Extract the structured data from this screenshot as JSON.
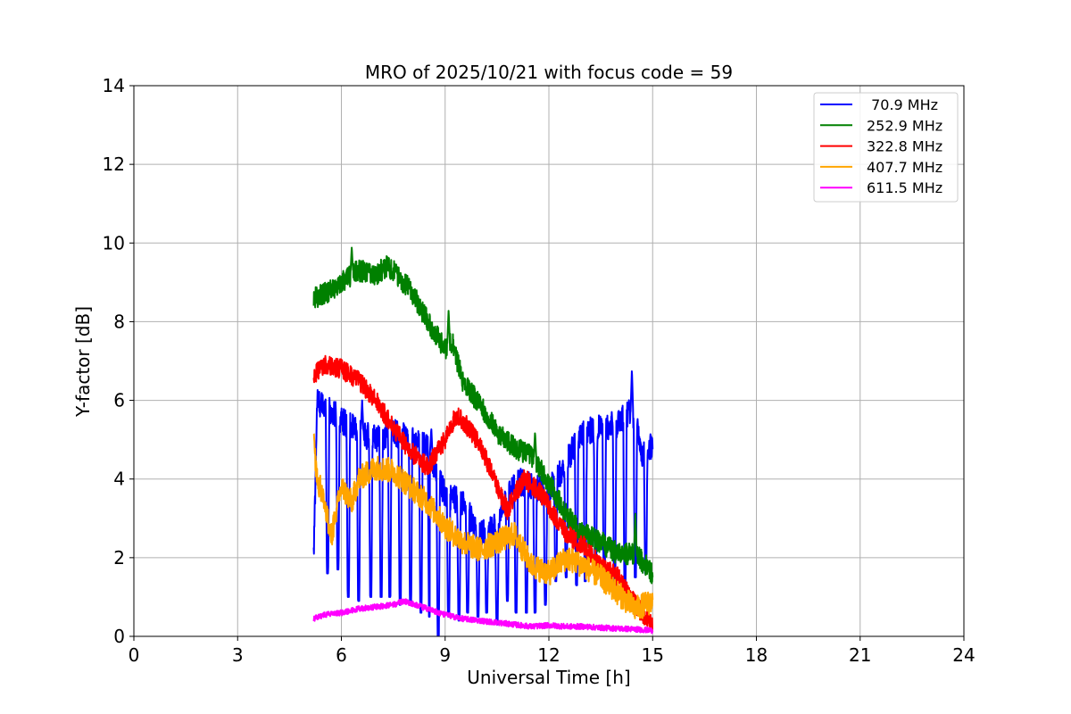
{
  "chart_data": {
    "type": "line",
    "title": "MRO of 2025/10/21 with focus code = 59",
    "xlabel": "Universal Time [h]",
    "ylabel": "Y-factor [dB]",
    "xlim": [
      0,
      24
    ],
    "ylim": [
      0,
      14
    ],
    "xticks": [
      0,
      3,
      6,
      9,
      12,
      15,
      18,
      21,
      24
    ],
    "yticks": [
      0,
      2,
      4,
      6,
      8,
      10,
      12,
      14
    ],
    "grid": true,
    "legend_position": "top-right",
    "series": [
      {
        "name": " 70.9 MHz",
        "color": "#0000ff",
        "noise": 0.35,
        "spike_width": 0.05,
        "dips": [
          5.6,
          5.9,
          6.2,
          6.5,
          6.85,
          7.15,
          7.4,
          7.7,
          8.0,
          8.3,
          8.55,
          8.8,
          9.1,
          9.4,
          9.65,
          9.95,
          10.2,
          10.5,
          10.8,
          11.05,
          11.35,
          11.6,
          11.9,
          12.2,
          12.5,
          12.8,
          13.05,
          13.35,
          13.6,
          13.9,
          14.2,
          14.5,
          14.8
        ],
        "dip_floor": [
          1.6,
          1.7,
          1.0,
          0.9,
          1.0,
          1.0,
          1.0,
          0.8,
          0.8,
          0.6,
          0.5,
          0.0,
          0.5,
          0.4,
          0.6,
          0.5,
          0.6,
          0.3,
          0.9,
          0.6,
          0.6,
          0.6,
          0.8,
          1.4,
          1.5,
          1.3,
          1.4,
          1.4,
          1.4,
          1.0,
          1.3,
          1.5,
          1.6
        ],
        "x": [
          5.2,
          5.3,
          5.5,
          5.7,
          6.0,
          6.5,
          7.0,
          7.5,
          8.0,
          8.5,
          9.0,
          9.5,
          10.0,
          10.5,
          11.0,
          11.5,
          12.0,
          12.5,
          12.8,
          13.0,
          13.5,
          14.0,
          14.3,
          14.5,
          14.7,
          15.0
        ],
        "y": [
          2.0,
          6.0,
          5.8,
          5.7,
          5.5,
          5.2,
          5.0,
          5.2,
          5.0,
          4.8,
          3.6,
          3.4,
          2.6,
          2.8,
          4.0,
          3.8,
          3.7,
          4.4,
          5.0,
          5.2,
          5.3,
          5.4,
          5.7,
          5.5,
          4.6,
          4.9
        ],
        "spikes": [
          {
            "x": 14.4,
            "y": 6.8
          },
          {
            "x": 6.6,
            "y": 6.0
          },
          {
            "x": 8.6,
            "y": 5.3
          }
        ]
      },
      {
        "name": "252.9 MHz",
        "color": "#008000",
        "noise": 0.28,
        "x": [
          5.2,
          5.5,
          6.0,
          6.3,
          6.5,
          7.0,
          7.3,
          7.5,
          8.0,
          8.5,
          9.0,
          9.2,
          9.5,
          10.0,
          10.5,
          11.0,
          11.5,
          12.0,
          12.5,
          13.0,
          13.5,
          14.0,
          14.5,
          15.0
        ],
        "y": [
          8.6,
          8.7,
          9.0,
          9.2,
          9.3,
          9.2,
          9.4,
          9.3,
          8.8,
          8.0,
          7.3,
          7.5,
          6.5,
          5.9,
          5.2,
          4.8,
          4.6,
          3.9,
          3.1,
          2.6,
          2.4,
          2.1,
          2.1,
          1.6
        ],
        "spikes": [
          {
            "x": 6.3,
            "y": 9.9
          },
          {
            "x": 9.1,
            "y": 8.3
          },
          {
            "x": 14.5,
            "y": 3.2
          },
          {
            "x": 11.6,
            "y": 5.2
          }
        ]
      },
      {
        "name": "322.8 MHz",
        "color": "#ff0000",
        "noise": 0.25,
        "x": [
          5.2,
          5.5,
          6.0,
          6.5,
          7.0,
          7.5,
          8.0,
          8.5,
          9.0,
          9.3,
          9.5,
          10.0,
          10.5,
          10.8,
          11.0,
          11.3,
          11.7,
          12.0,
          12.5,
          13.0,
          13.5,
          14.0,
          14.5,
          15.0
        ],
        "y": [
          6.6,
          6.9,
          6.8,
          6.5,
          6.0,
          5.3,
          4.7,
          4.3,
          5.0,
          5.6,
          5.5,
          4.9,
          3.8,
          3.2,
          3.6,
          4.0,
          3.7,
          3.3,
          2.6,
          2.3,
          1.8,
          1.5,
          0.8,
          0.3
        ]
      },
      {
        "name": "407.7 MHz",
        "color": "#ffa500",
        "noise": 0.32,
        "x": [
          5.2,
          5.3,
          5.5,
          5.7,
          6.0,
          6.3,
          6.5,
          7.0,
          7.5,
          8.0,
          8.5,
          9.0,
          9.5,
          10.0,
          10.5,
          11.0,
          11.5,
          12.0,
          12.5,
          13.0,
          13.5,
          14.0,
          14.5,
          15.0
        ],
        "y": [
          5.0,
          4.0,
          3.5,
          2.5,
          3.8,
          3.4,
          4.0,
          4.3,
          4.2,
          3.8,
          3.4,
          2.8,
          2.4,
          2.2,
          2.4,
          2.6,
          1.8,
          1.6,
          2.0,
          1.8,
          1.5,
          1.1,
          0.7,
          0.9
        ]
      },
      {
        "name": "611.5 MHz",
        "color": "#ff00ff",
        "noise": 0.07,
        "x": [
          5.2,
          5.5,
          6.0,
          6.5,
          7.0,
          7.5,
          7.8,
          8.0,
          8.5,
          9.0,
          9.5,
          10.0,
          10.5,
          11.0,
          11.5,
          12.0,
          12.5,
          13.0,
          13.5,
          14.0,
          14.5,
          15.0
        ],
        "y": [
          0.45,
          0.55,
          0.6,
          0.7,
          0.75,
          0.8,
          0.9,
          0.85,
          0.7,
          0.55,
          0.45,
          0.4,
          0.35,
          0.3,
          0.25,
          0.28,
          0.25,
          0.25,
          0.22,
          0.2,
          0.18,
          0.15
        ]
      }
    ]
  }
}
